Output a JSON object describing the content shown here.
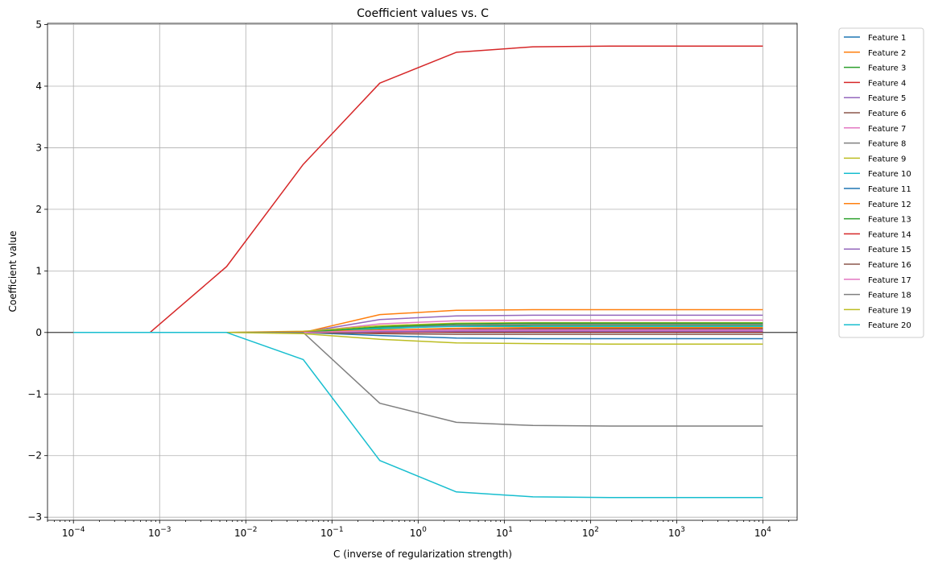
{
  "chart_data": {
    "type": "line",
    "title": "Coefficient values vs. C",
    "xlabel": "C (inverse of regularization strength)",
    "ylabel": "Coefficient value",
    "xscale": "log",
    "xlim": [
      5e-05,
      25000
    ],
    "ylim": [
      -3.05,
      5.02
    ],
    "x_tick_exponents": [
      "-4",
      "-3",
      "-2",
      "-1",
      "0",
      "1",
      "2",
      "3",
      "4"
    ],
    "x_tick_base": "10",
    "y_ticks": [
      -3,
      -2,
      -1,
      0,
      1,
      2,
      3,
      4,
      5
    ],
    "y_tick_labels": [
      "−3",
      "−2",
      "−1",
      "0",
      "1",
      "2",
      "3",
      "4",
      "5"
    ],
    "grid": true,
    "zero_line": true,
    "legend_position": "outside-right-top",
    "x": [
      0.0001,
      0.000774,
      0.00599,
      0.0464,
      0.359,
      2.78,
      21.5,
      167,
      1292,
      10000
    ],
    "series": [
      {
        "name": "Feature 1",
        "color": "#1f77b4",
        "values": [
          0,
          0,
          0,
          0,
          0.02,
          0.04,
          0.05,
          0.05,
          0.05,
          0.05
        ]
      },
      {
        "name": "Feature 2",
        "color": "#ff7f0e",
        "values": [
          0,
          0,
          0,
          0,
          0.29,
          0.36,
          0.37,
          0.37,
          0.37,
          0.37
        ]
      },
      {
        "name": "Feature 3",
        "color": "#2ca02c",
        "values": [
          0,
          0,
          0,
          0,
          0.06,
          0.11,
          0.12,
          0.12,
          0.12,
          0.12
        ]
      },
      {
        "name": "Feature 4",
        "color": "#d62728",
        "values": [
          0,
          0,
          1.07,
          2.73,
          4.05,
          4.55,
          4.64,
          4.65,
          4.65,
          4.65
        ]
      },
      {
        "name": "Feature 5",
        "color": "#9467bd",
        "values": [
          0,
          0,
          0,
          0,
          0.21,
          0.27,
          0.28,
          0.28,
          0.28,
          0.28
        ]
      },
      {
        "name": "Feature 6",
        "color": "#8c564b",
        "values": [
          0,
          0,
          0,
          0,
          0.03,
          0.05,
          0.06,
          0.06,
          0.06,
          0.06
        ]
      },
      {
        "name": "Feature 7",
        "color": "#e377c2",
        "values": [
          0,
          0,
          0,
          0,
          0.14,
          0.19,
          0.2,
          0.2,
          0.2,
          0.2
        ]
      },
      {
        "name": "Feature 8",
        "color": "#7f7f7f",
        "values": [
          0,
          0,
          0,
          0,
          0.08,
          0.12,
          0.13,
          0.13,
          0.13,
          0.13
        ]
      },
      {
        "name": "Feature 9",
        "color": "#bcbd22",
        "values": [
          0,
          0,
          0,
          0.02,
          0.11,
          0.15,
          0.16,
          0.16,
          0.16,
          0.16
        ]
      },
      {
        "name": "Feature 10",
        "color": "#17becf",
        "values": [
          0,
          0,
          0,
          0,
          0.07,
          0.1,
          0.1,
          0.1,
          0.1,
          0.1
        ]
      },
      {
        "name": "Feature 11",
        "color": "#1f77b4",
        "values": [
          0,
          0,
          0,
          0,
          -0.05,
          -0.09,
          -0.1,
          -0.1,
          -0.1,
          -0.1
        ]
      },
      {
        "name": "Feature 12",
        "color": "#ff7f0e",
        "values": [
          0,
          0,
          0,
          0.01,
          0.04,
          0.07,
          0.08,
          0.08,
          0.08,
          0.08
        ]
      },
      {
        "name": "Feature 13",
        "color": "#2ca02c",
        "values": [
          0,
          0,
          0,
          0,
          0.09,
          0.14,
          0.15,
          0.15,
          0.15,
          0.15
        ]
      },
      {
        "name": "Feature 14",
        "color": "#d62728",
        "values": [
          0,
          0,
          0,
          0,
          0.0,
          0.01,
          0.01,
          0.01,
          0.01,
          0.01
        ]
      },
      {
        "name": "Feature 15",
        "color": "#9467bd",
        "values": [
          0,
          0,
          0,
          0,
          0.01,
          0.02,
          0.02,
          0.02,
          0.02,
          0.02
        ]
      },
      {
        "name": "Feature 16",
        "color": "#8c564b",
        "values": [
          0,
          0,
          0,
          0,
          -0.02,
          -0.03,
          -0.03,
          -0.03,
          -0.03,
          -0.03
        ]
      },
      {
        "name": "Feature 17",
        "color": "#e377c2",
        "values": [
          0,
          0,
          0,
          0,
          0.03,
          0.04,
          0.04,
          0.04,
          0.04,
          0.04
        ]
      },
      {
        "name": "Feature 18",
        "color": "#7f7f7f",
        "values": [
          0,
          0,
          0,
          0,
          -1.15,
          -1.46,
          -1.51,
          -1.52,
          -1.52,
          -1.52
        ]
      },
      {
        "name": "Feature 19",
        "color": "#bcbd22",
        "values": [
          0,
          0,
          0,
          -0.02,
          -0.11,
          -0.17,
          -0.18,
          -0.19,
          -0.19,
          -0.19
        ]
      },
      {
        "name": "Feature 20",
        "color": "#17becf",
        "values": [
          0,
          0,
          0,
          -0.44,
          -2.08,
          -2.59,
          -2.67,
          -2.68,
          -2.68,
          -2.68
        ]
      }
    ]
  }
}
